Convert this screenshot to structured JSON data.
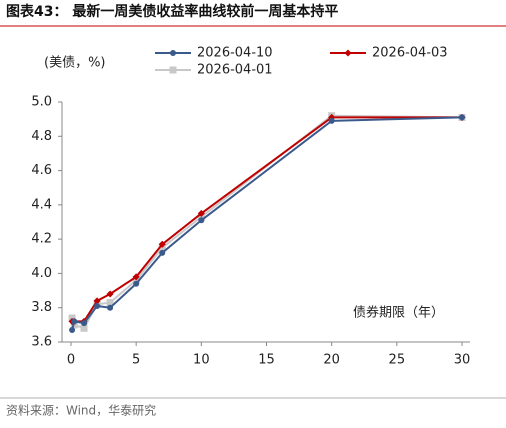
{
  "chart_data": {
    "type": "line",
    "title": "图表43：  最新一周美债收益率曲线较前一周基本持平",
    "y_label": "(美债，%)",
    "x_label": "债券期限（年）",
    "source": "资料来源：Wind，华泰研究",
    "x": [
      0.083,
      0.25,
      1,
      2,
      3,
      5,
      7,
      10,
      20,
      30
    ],
    "series": [
      {
        "name": "2026-04-10",
        "color": "#3b5a8c",
        "values": [
          3.67,
          3.72,
          3.71,
          3.81,
          3.8,
          3.94,
          4.12,
          4.31,
          4.89,
          4.91
        ]
      },
      {
        "name": "2026-04-03",
        "color": "#c00000",
        "values": [
          3.72,
          3.72,
          3.72,
          3.84,
          3.88,
          3.98,
          4.17,
          4.35,
          4.91,
          4.91
        ]
      },
      {
        "name": "2026-04-01",
        "color": "#c8c8c8",
        "values": [
          3.74,
          3.7,
          3.68,
          3.82,
          3.83,
          3.96,
          4.15,
          4.33,
          4.92,
          4.91
        ]
      }
    ],
    "xlim": [
      0,
      30
    ],
    "xticks": [
      0,
      5,
      10,
      15,
      20,
      25,
      30
    ],
    "ylim": [
      3.6,
      5
    ],
    "yticks": [
      3.6,
      3.8,
      {
        "value": 4,
        "label": "4.0"
      },
      4.2,
      4.4,
      4.6,
      4.8,
      {
        "value": 5,
        "label": "5.0"
      }
    ]
  }
}
